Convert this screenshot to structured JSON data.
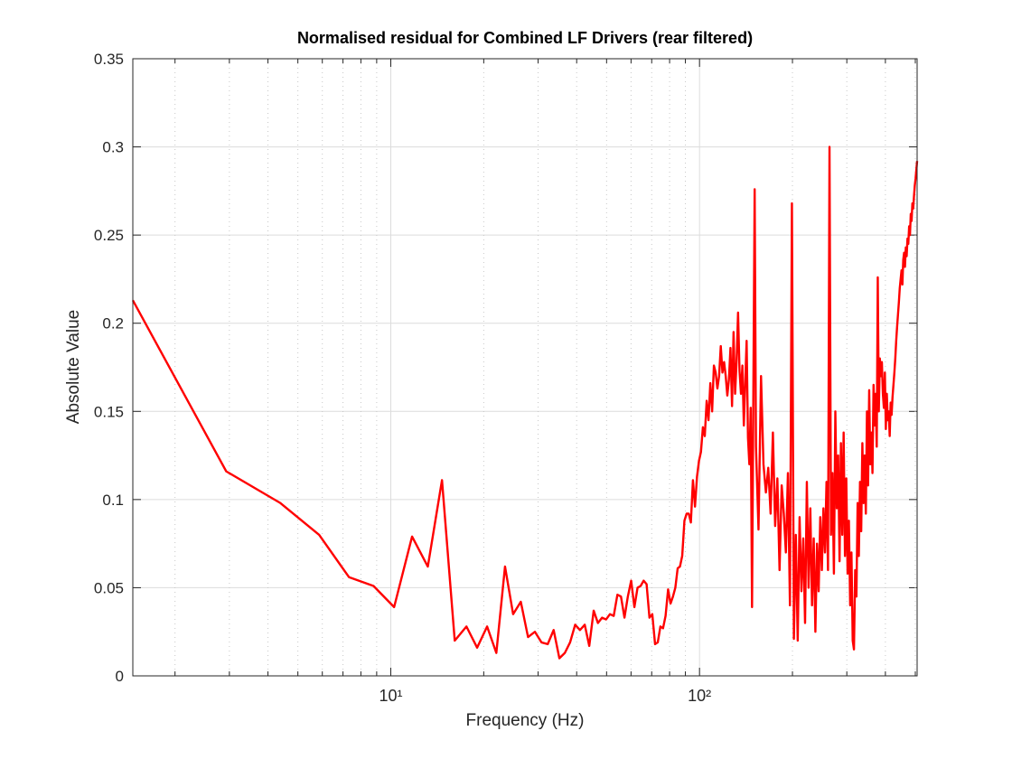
{
  "chart_data": {
    "type": "line",
    "title": "Normalised residual for Combined LF Drivers (rear filtered)",
    "xlabel": "Frequency (Hz)",
    "ylabel": "Absolute Value",
    "xscale": "log",
    "grid": true,
    "color": "#ff0000",
    "xlim": [
      1.46,
      506.82
    ],
    "ylim": [
      0,
      0.35
    ],
    "xticks": [
      {
        "value": 10,
        "label": "10¹"
      },
      {
        "value": 100,
        "label": "10²"
      }
    ],
    "xminorticks": [
      2,
      3,
      4,
      5,
      6,
      7,
      8,
      9,
      20,
      30,
      40,
      50,
      60,
      70,
      80,
      90,
      200,
      300,
      400,
      500
    ],
    "yticks": [
      0,
      0.05,
      0.1,
      0.15,
      0.2,
      0.25,
      0.3,
      0.35
    ],
    "x": [
      1.46,
      2.93,
      4.39,
      5.86,
      7.32,
      8.79,
      10.25,
      11.72,
      13.18,
      14.65,
      16.11,
      17.58,
      19.04,
      20.51,
      21.97,
      23.44,
      24.9,
      26.37,
      27.83,
      29.3,
      30.76,
      32.23,
      33.69,
      35.16,
      36.62,
      38.08,
      39.55,
      41.01,
      42.48,
      43.94,
      45.41,
      46.87,
      48.34,
      49.8,
      51.27,
      52.73,
      54.2,
      55.66,
      57.13,
      58.59,
      60.06,
      61.52,
      62.99,
      64.45,
      65.92,
      67.38,
      68.85,
      70.31,
      71.78,
      73.24,
      74.7,
      76.17,
      77.63,
      79.1,
      80.56,
      82.03,
      83.49,
      84.96,
      86.42,
      87.89,
      89.35,
      90.82,
      92.28,
      93.75,
      95.21,
      96.68,
      98.14,
      99.61,
      101.07,
      102.54,
      104.0,
      105.47,
      106.93,
      108.4,
      109.86,
      111.32,
      112.79,
      114.25,
      115.72,
      117.18,
      118.65,
      120.11,
      121.58,
      123.04,
      124.51,
      125.97,
      127.44,
      128.9,
      130.37,
      131.83,
      133.3,
      134.76,
      136.23,
      137.69,
      139.16,
      140.62,
      142.09,
      143.55,
      145.02,
      146.48,
      147.94,
      149.41,
      150.87,
      152.34,
      155.27,
      158.2,
      161.13,
      164.06,
      166.99,
      169.92,
      172.85,
      175.78,
      178.71,
      181.64,
      184.56,
      187.49,
      190.42,
      193.35,
      196.28,
      199.21,
      202.14,
      205.07,
      208.0,
      210.93,
      213.86,
      216.79,
      219.72,
      222.65,
      225.58,
      228.51,
      231.44,
      234.37,
      237.3,
      240.23,
      243.16,
      246.09,
      249.02,
      251.95,
      254.88,
      257.8,
      260.73,
      263.66,
      266.59,
      269.52,
      272.45,
      275.38,
      278.31,
      281.24,
      284.17,
      287.1,
      290.03,
      292.96,
      295.89,
      298.82,
      301.75,
      304.68,
      307.61,
      310.54,
      313.47,
      316.4,
      319.33,
      322.26,
      325.19,
      328.12,
      331.04,
      333.97,
      336.9,
      339.83,
      342.76,
      345.69,
      348.62,
      351.55,
      354.48,
      357.41,
      360.34,
      363.27,
      366.2,
      369.13,
      372.06,
      374.99,
      377.92,
      380.85,
      383.78,
      386.71,
      389.64,
      392.57,
      395.5,
      398.43,
      401.36,
      404.28,
      407.21,
      410.14,
      413.07,
      416.0,
      418.93,
      421.86,
      424.79,
      427.72,
      430.65,
      433.58,
      436.51,
      439.44,
      442.37,
      445.3,
      448.23,
      451.16,
      454.09,
      457.02,
      459.95,
      462.88,
      465.81,
      468.74,
      471.67,
      474.6,
      477.52,
      480.45,
      483.38,
      486.31,
      489.24,
      492.17,
      495.1,
      498.03,
      500.96,
      503.89,
      506.82
    ],
    "values": [
      0.213,
      0.116,
      0.098,
      0.08,
      0.056,
      0.051,
      0.039,
      0.079,
      0.062,
      0.111,
      0.02,
      0.028,
      0.016,
      0.028,
      0.013,
      0.062,
      0.035,
      0.042,
      0.022,
      0.025,
      0.019,
      0.018,
      0.026,
      0.01,
      0.013,
      0.019,
      0.029,
      0.026,
      0.029,
      0.017,
      0.037,
      0.03,
      0.033,
      0.032,
      0.035,
      0.034,
      0.046,
      0.045,
      0.033,
      0.045,
      0.054,
      0.039,
      0.05,
      0.051,
      0.054,
      0.052,
      0.033,
      0.035,
      0.018,
      0.019,
      0.028,
      0.027,
      0.034,
      0.049,
      0.041,
      0.045,
      0.05,
      0.061,
      0.062,
      0.068,
      0.088,
      0.092,
      0.092,
      0.087,
      0.111,
      0.096,
      0.113,
      0.122,
      0.127,
      0.141,
      0.136,
      0.156,
      0.145,
      0.166,
      0.15,
      0.176,
      0.172,
      0.163,
      0.17,
      0.187,
      0.172,
      0.178,
      0.17,
      0.159,
      0.168,
      0.186,
      0.153,
      0.195,
      0.16,
      0.178,
      0.206,
      0.173,
      0.16,
      0.176,
      0.142,
      0.166,
      0.19,
      0.135,
      0.12,
      0.152,
      0.039,
      0.161,
      0.276,
      0.13,
      0.083,
      0.17,
      0.12,
      0.104,
      0.118,
      0.092,
      0.138,
      0.085,
      0.112,
      0.06,
      0.108,
      0.092,
      0.07,
      0.115,
      0.04,
      0.268,
      0.021,
      0.08,
      0.02,
      0.09,
      0.048,
      0.078,
      0.03,
      0.11,
      0.05,
      0.095,
      0.04,
      0.078,
      0.025,
      0.075,
      0.048,
      0.09,
      0.06,
      0.095,
      0.07,
      0.11,
      0.06,
      0.3,
      0.08,
      0.115,
      0.058,
      0.15,
      0.095,
      0.125,
      0.065,
      0.132,
      0.08,
      0.138,
      0.068,
      0.112,
      0.058,
      0.088,
      0.04,
      0.07,
      0.02,
      0.015,
      0.06,
      0.045,
      0.098,
      0.068,
      0.11,
      0.082,
      0.132,
      0.098,
      0.125,
      0.092,
      0.15,
      0.108,
      0.162,
      0.12,
      0.138,
      0.115,
      0.165,
      0.142,
      0.16,
      0.13,
      0.226,
      0.15,
      0.18,
      0.17,
      0.178,
      0.16,
      0.152,
      0.172,
      0.14,
      0.16,
      0.145,
      0.15,
      0.136,
      0.155,
      0.148,
      0.158,
      0.165,
      0.172,
      0.18,
      0.19,
      0.198,
      0.205,
      0.212,
      0.22,
      0.225,
      0.23,
      0.222,
      0.236,
      0.24,
      0.232,
      0.243,
      0.238,
      0.248,
      0.245,
      0.255,
      0.25,
      0.262,
      0.258,
      0.268,
      0.265,
      0.272,
      0.278,
      0.282,
      0.287,
      0.292
    ]
  }
}
